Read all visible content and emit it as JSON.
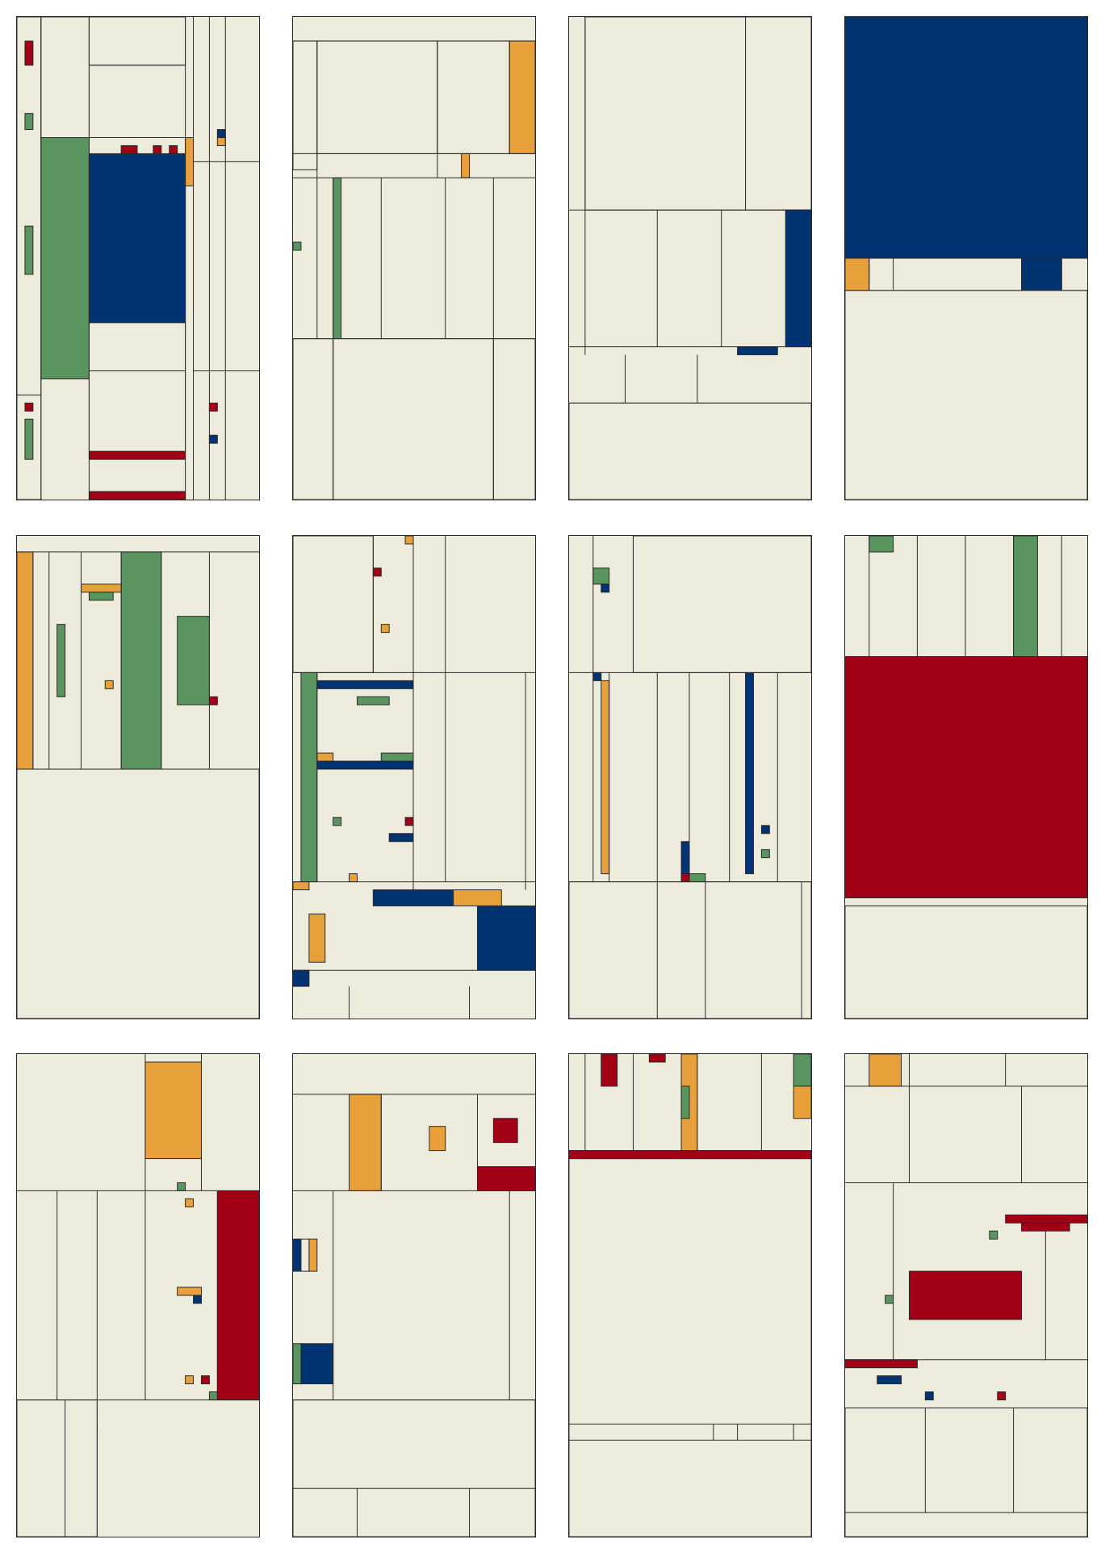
{
  "palette": {
    "background": "#ffffff",
    "cream": "#edebdc",
    "line": "#2a2a2a",
    "blue": "#003371",
    "red": "#a20015",
    "green": "#5a9560",
    "orange": "#e8a03a"
  },
  "panels": [
    {
      "id": "p1",
      "dominant_color": "blue",
      "accent_colors": [
        "green",
        "red",
        "orange"
      ]
    },
    {
      "id": "p2",
      "dominant_color": "cream",
      "accent_colors": [
        "orange",
        "green"
      ]
    },
    {
      "id": "p3",
      "dominant_color": "cream",
      "accent_colors": [
        "blue"
      ]
    },
    {
      "id": "p4",
      "dominant_color": "blue",
      "accent_colors": [
        "orange"
      ]
    },
    {
      "id": "p5",
      "dominant_color": "green",
      "accent_colors": [
        "orange",
        "red"
      ]
    },
    {
      "id": "p6",
      "dominant_color": "blue",
      "accent_colors": [
        "green",
        "orange",
        "red"
      ]
    },
    {
      "id": "p7",
      "dominant_color": "blue",
      "accent_colors": [
        "orange",
        "green",
        "red"
      ]
    },
    {
      "id": "p8",
      "dominant_color": "red",
      "accent_colors": [
        "green"
      ]
    },
    {
      "id": "p9",
      "dominant_color": "red",
      "accent_colors": [
        "orange",
        "blue",
        "green"
      ]
    },
    {
      "id": "p10",
      "dominant_color": "red",
      "accent_colors": [
        "orange",
        "blue",
        "green"
      ]
    },
    {
      "id": "p11",
      "dominant_color": "red",
      "accent_colors": [
        "orange",
        "green"
      ]
    },
    {
      "id": "p12",
      "dominant_color": "red",
      "accent_colors": [
        "orange",
        "blue",
        "green"
      ]
    }
  ]
}
